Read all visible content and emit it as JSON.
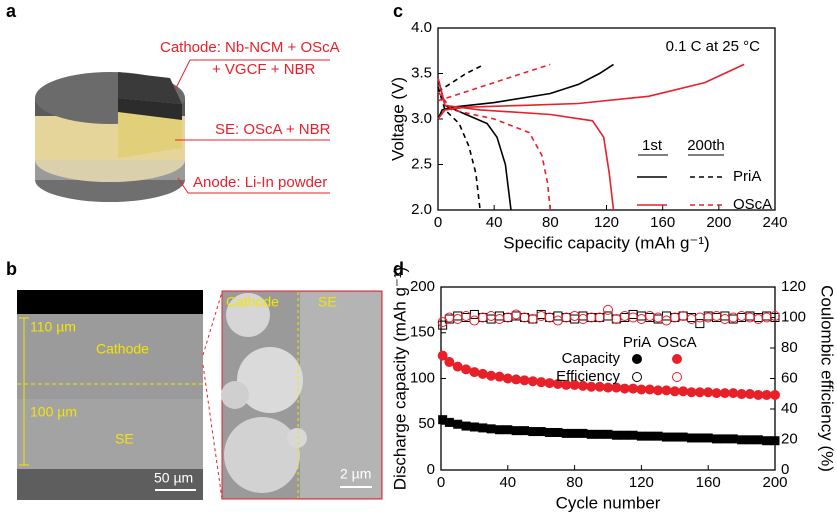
{
  "panel_labels": [
    "a",
    "b",
    "c",
    "d"
  ],
  "diagram": {
    "cathode": "Cathode: Nb-NCM + OScA",
    "cathode_2": "+ VGCF + NBR",
    "se": "SE: OScA + NBR",
    "anode": "Anode: Li-In powder"
  },
  "micrograph": {
    "left": {
      "thickness_top": "110 µm",
      "label_top": "Cathode",
      "thickness_bottom": "100 µm",
      "label_bottom": "SE",
      "scale": "50 µm"
    },
    "right": {
      "label_left": "Cathode",
      "label_right": "SE",
      "scale": "2 µm"
    }
  },
  "chart_data": [
    {
      "type": "line",
      "xlabel": "Specific capacity (mAh g⁻¹)",
      "ylabel": "Voltage (V)",
      "annotation": "0.1 C at 25 °C",
      "xlim": [
        0,
        240
      ],
      "xticks": [
        0,
        40,
        80,
        120,
        160,
        200,
        240
      ],
      "ylim": [
        2,
        4
      ],
      "yticks": [
        {
          "value": 2,
          "label": "2.0"
        },
        {
          "value": 2.5,
          "label": "2.5"
        },
        {
          "value": 3,
          "label": "3.0"
        },
        {
          "value": 3.5,
          "label": "3.5"
        },
        {
          "value": 4,
          "label": "4.0"
        }
      ],
      "legend": {
        "columns": [
          "1st",
          "200th"
        ],
        "rows": [
          {
            "label": "PriA",
            "color": "#000000"
          },
          {
            "label": "OScA",
            "color": "#e8202a"
          }
        ]
      },
      "series": [
        {
          "color": "#000000",
          "dashed": false,
          "x": [
            0,
            3,
            10,
            40,
            80,
            100,
            115,
            125
          ],
          "values": [
            3.0,
            3.1,
            3.13,
            3.18,
            3.28,
            3.38,
            3.5,
            3.6
          ]
        },
        {
          "color": "#000000",
          "dashed": false,
          "x": [
            0,
            5,
            20,
            35,
            42,
            48,
            52
          ],
          "values": [
            3.45,
            3.15,
            3.05,
            2.95,
            2.8,
            2.5,
            2.0
          ]
        },
        {
          "color": "#000000",
          "dashed": true,
          "x": [
            0,
            10,
            20,
            33
          ],
          "values": [
            3.3,
            3.4,
            3.5,
            3.6
          ]
        },
        {
          "color": "#000000",
          "dashed": true,
          "x": [
            0,
            5,
            15,
            22,
            27,
            30
          ],
          "values": [
            3.35,
            3.1,
            2.95,
            2.7,
            2.4,
            2.0
          ]
        },
        {
          "color": "#e8202a",
          "dashed": false,
          "x": [
            0,
            5,
            20,
            60,
            100,
            150,
            190,
            218
          ],
          "values": [
            3.0,
            3.1,
            3.13,
            3.15,
            3.17,
            3.25,
            3.4,
            3.6
          ]
        },
        {
          "color": "#e8202a",
          "dashed": false,
          "x": [
            0,
            5,
            30,
            80,
            110,
            118,
            122,
            125
          ],
          "values": [
            3.45,
            3.15,
            3.1,
            3.05,
            2.98,
            2.8,
            2.4,
            2.0
          ]
        },
        {
          "color": "#e8202a",
          "dashed": true,
          "x": [
            0,
            20,
            50,
            80
          ],
          "values": [
            3.2,
            3.3,
            3.45,
            3.6
          ]
        },
        {
          "color": "#e8202a",
          "dashed": true,
          "x": [
            0,
            10,
            40,
            65,
            74,
            78,
            80
          ],
          "values": [
            3.3,
            3.1,
            3.0,
            2.85,
            2.6,
            2.3,
            2.0
          ]
        }
      ]
    },
    {
      "type": "scatter",
      "xlabel": "Cycle number",
      "ylabel": "Discharge capacity (mAh g⁻¹)",
      "y2label": "Coulombic efficiency (%)",
      "xlim": [
        0,
        200
      ],
      "xticks": [
        0,
        40,
        80,
        120,
        160,
        200
      ],
      "ylim": [
        0,
        200
      ],
      "yticks": [
        0,
        50,
        100,
        150,
        200
      ],
      "y2lim": [
        0,
        120
      ],
      "y2ticks": [
        0,
        20,
        40,
        60,
        80,
        100,
        120
      ],
      "legend": {
        "columns": [
          {
            "label": "PriA",
            "color": "#000000"
          },
          {
            "label": "OScA",
            "color": "#e8202a"
          }
        ],
        "rows": [
          {
            "label": "Capacity",
            "filled": true
          },
          {
            "label": "Efficiency",
            "filled": false
          }
        ]
      },
      "x": [
        1,
        5,
        10,
        15,
        20,
        25,
        30,
        35,
        40,
        45,
        50,
        55,
        60,
        65,
        70,
        75,
        80,
        85,
        90,
        95,
        100,
        105,
        110,
        115,
        120,
        125,
        130,
        135,
        140,
        145,
        150,
        155,
        160,
        165,
        170,
        175,
        180,
        185,
        190,
        195,
        200
      ],
      "series": [
        {
          "color": "#000000",
          "marker": "square",
          "filled": true,
          "values": [
            55,
            52,
            50,
            48,
            47,
            46,
            45,
            44,
            44,
            43,
            43,
            42,
            42,
            41,
            41,
            40,
            40,
            40,
            39,
            39,
            39,
            38,
            38,
            38,
            37,
            37,
            37,
            36,
            36,
            36,
            35,
            35,
            35,
            34,
            34,
            34,
            33,
            33,
            33,
            32,
            32
          ]
        },
        {
          "color": "#e8202a",
          "marker": "circle",
          "filled": true,
          "values": [
            125,
            118,
            113,
            110,
            107,
            105,
            103,
            102,
            100,
            99,
            98,
            97,
            96,
            95,
            94,
            93,
            93,
            92,
            91,
            91,
            90,
            90,
            89,
            89,
            88,
            88,
            87,
            87,
            86,
            86,
            85,
            85,
            85,
            84,
            84,
            84,
            83,
            83,
            82,
            82,
            82
          ]
        },
        {
          "color": "#000000",
          "marker": "square",
          "filled": false,
          "axis": "y2",
          "values": [
            95,
            99,
            101,
            100,
            102,
            100,
            99,
            101,
            100,
            101,
            100,
            99,
            102,
            100,
            101,
            100,
            99,
            101,
            100,
            100,
            101,
            99,
            100,
            102,
            101,
            100,
            99,
            101,
            100,
            101,
            100,
            96,
            101,
            100,
            101,
            99,
            100,
            101,
            100,
            101,
            100
          ]
        },
        {
          "color": "#e8202a",
          "marker": "circle",
          "filled": false,
          "axis": "y2",
          "values": [
            97,
            100,
            99,
            101,
            98,
            100,
            101,
            99,
            100,
            102,
            100,
            99,
            101,
            100,
            98,
            100,
            101,
            99,
            100,
            100,
            105,
            99,
            101,
            100,
            99,
            101,
            100,
            98,
            100,
            101,
            99,
            100,
            100,
            101,
            99,
            100,
            101,
            100,
            99,
            100,
            101
          ]
        }
      ]
    }
  ]
}
